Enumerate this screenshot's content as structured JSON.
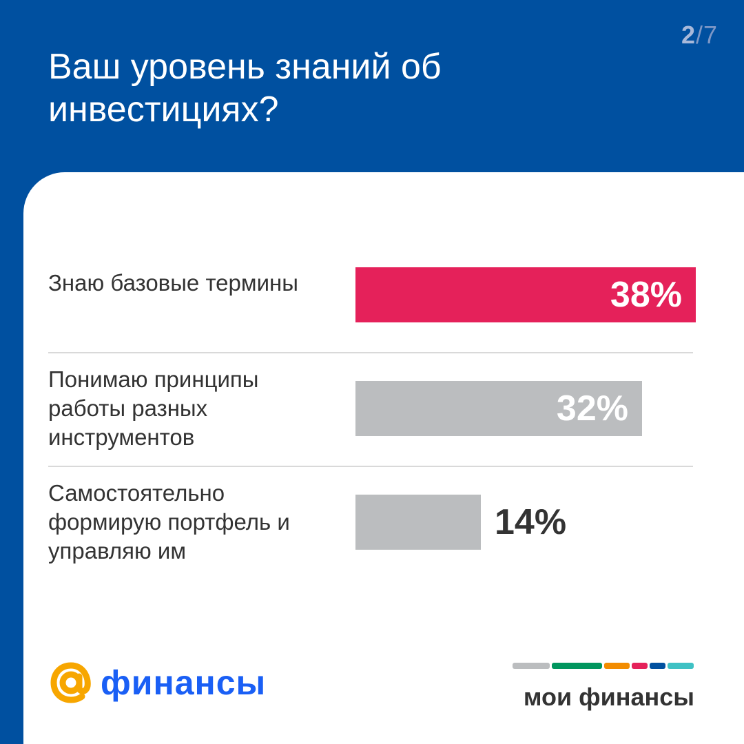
{
  "page": {
    "current": "2",
    "total": "/7"
  },
  "headline": "Ваш уровень знаний об инвестициях?",
  "chart_data": {
    "type": "bar",
    "orientation": "horizontal",
    "categories": [
      "Знаю базовые термины",
      "Понимаю принципы работы разных инструментов",
      "Самостоятельно формирую портфель и управляю им"
    ],
    "values": [
      38,
      32,
      14
    ],
    "value_labels": [
      "38%",
      "32%",
      "14%"
    ],
    "bar_colors": [
      "#e5215a",
      "#bbbdbf",
      "#bbbdbf"
    ],
    "xlim": [
      0,
      38
    ],
    "grid": false
  },
  "brand_left": {
    "name": "финансы",
    "at_color": "#f7a600",
    "color": "#1a5ff5"
  },
  "brand_right": {
    "name": "мои финансы",
    "stripe_colors": [
      "#bbbdbf",
      "#00965e",
      "#f28c00",
      "#e5215a",
      "#0050a0",
      "#3ec1c4"
    ]
  },
  "colors": {
    "background": "#0050a0",
    "card": "#ffffff",
    "text": "#333333"
  }
}
